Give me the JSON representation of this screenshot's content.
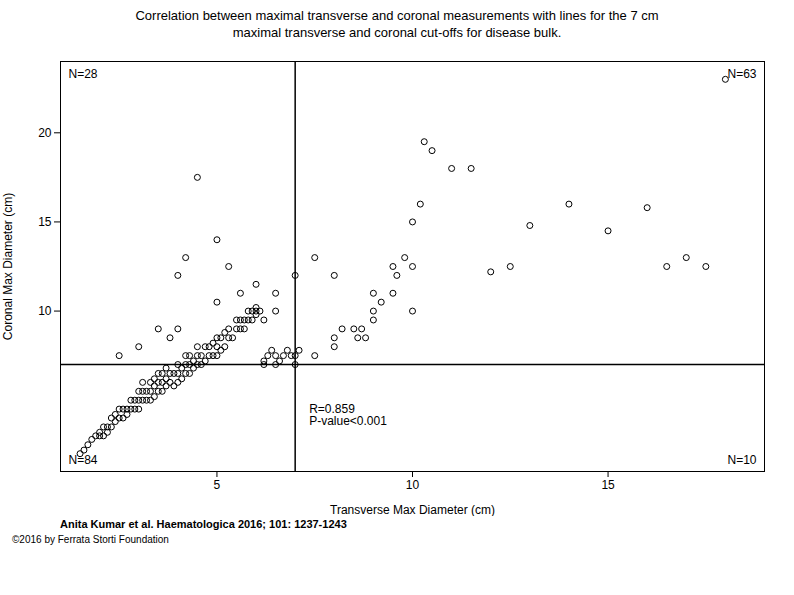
{
  "chart_data": {
    "type": "scatter",
    "title": "Correlation between maximal transverse and coronal measurements with lines for the 7 cm\nmaximal transverse and coronal cut-offs for disease bulk.",
    "x_label": "Transverse Max Diameter (cm)",
    "y_label": "Coronal Max Diameter (cm)",
    "xlim": [
      1,
      19
    ],
    "ylim": [
      1,
      24
    ],
    "xticks": [
      5,
      10,
      15
    ],
    "yticks": [
      10,
      15,
      20
    ],
    "grid": false,
    "marker": "circle",
    "color": "#000000",
    "vline": 7,
    "hline": 7,
    "quadrant_labels": {
      "top_left": "N=28",
      "top_right": "N=63",
      "bottom_left": "N=84",
      "bottom_right": "N=10"
    },
    "stats_box": "R=0.859\nP-value<0.001",
    "citation": "Anita Kumar et al. Haematologica 2016; 101: 1237-1243",
    "copyright": "©2016 by Ferrata Storti Foundation",
    "x": [
      1.5,
      1.6,
      1.7,
      1.8,
      1.9,
      2.0,
      2.0,
      2.1,
      2.1,
      2.2,
      2.2,
      2.3,
      2.3,
      2.4,
      2.4,
      2.5,
      2.5,
      2.6,
      2.6,
      2.7,
      2.7,
      2.8,
      2.8,
      2.9,
      2.9,
      3.0,
      3.0,
      3.0,
      3.1,
      3.1,
      3.1,
      3.2,
      3.2,
      3.3,
      3.3,
      3.3,
      3.4,
      3.4,
      3.4,
      3.5,
      3.5,
      3.5,
      3.6,
      3.6,
      3.6,
      3.7,
      3.7,
      3.7,
      3.8,
      3.8,
      3.9,
      3.9,
      4.0,
      4.0,
      4.0,
      4.1,
      4.1,
      4.2,
      4.2,
      4.2,
      4.3,
      4.3,
      4.3,
      4.4,
      4.4,
      4.5,
      4.5,
      4.5,
      4.6,
      4.6,
      4.7,
      4.7,
      4.8,
      4.8,
      4.9,
      4.9,
      5.0,
      5.0,
      5.0,
      5.1,
      5.1,
      5.2,
      5.2,
      5.3,
      5.3,
      5.4,
      5.5,
      5.5,
      5.6,
      5.6,
      5.7,
      5.7,
      5.8,
      5.8,
      5.9,
      5.9,
      6.0,
      6.0,
      6.1,
      6.2,
      6.2,
      6.3,
      6.4,
      6.5,
      6.5,
      6.6,
      6.7,
      6.8,
      6.9,
      7.0,
      7.0,
      7.1,
      7.5,
      8.0,
      8.0,
      8.2,
      8.5,
      8.6,
      8.7,
      8.8,
      9.0,
      9.0,
      9.2,
      9.5,
      9.5,
      9.6,
      9.8,
      10.0,
      10.0,
      10.2,
      10.3,
      10.5,
      11.0,
      11.5,
      12.0,
      12.5,
      13.0,
      14.0,
      15.0,
      16.0,
      16.5,
      17.0,
      17.5,
      18.0,
      4.0,
      4.2,
      4.5,
      5.0,
      5.3,
      5.6,
      6.0,
      6.2,
      6.5,
      7.0,
      7.5,
      8.0,
      9.0,
      10.0,
      2.5,
      3.0,
      3.5,
      3.8,
      4.0,
      5.0,
      6.0,
      6.5
    ],
    "values": [
      2.0,
      2.2,
      2.5,
      2.8,
      3.0,
      3.0,
      3.2,
      3.0,
      3.5,
      3.2,
      3.5,
      3.5,
      4.0,
      3.8,
      4.2,
      4.0,
      4.5,
      4.0,
      4.5,
      4.2,
      4.5,
      4.5,
      5.0,
      4.5,
      5.0,
      4.5,
      5.0,
      5.5,
      5.0,
      5.5,
      6.0,
      5.0,
      5.5,
      5.0,
      5.5,
      6.0,
      5.2,
      5.8,
      6.2,
      5.5,
      6.0,
      6.5,
      5.5,
      6.0,
      6.5,
      5.8,
      6.2,
      6.8,
      6.0,
      6.5,
      5.8,
      6.5,
      6.0,
      6.5,
      7.0,
      6.2,
      6.8,
      6.5,
      7.0,
      7.5,
      6.5,
      7.0,
      7.5,
      6.8,
      7.2,
      7.0,
      7.5,
      8.0,
      7.0,
      7.5,
      7.2,
      8.0,
      7.5,
      8.0,
      7.5,
      8.2,
      7.5,
      8.0,
      8.5,
      7.8,
      8.5,
      8.0,
      8.8,
      8.5,
      9.0,
      8.5,
      9.0,
      9.5,
      9.0,
      9.5,
      9.0,
      9.5,
      9.5,
      10.0,
      9.5,
      10.0,
      9.8,
      10.2,
      10.0,
      7.0,
      7.2,
      7.5,
      7.8,
      7.0,
      7.5,
      7.2,
      7.5,
      7.8,
      7.5,
      7.0,
      7.5,
      7.8,
      7.5,
      8.5,
      8.0,
      9.0,
      9.0,
      8.5,
      9.0,
      8.5,
      9.5,
      10.0,
      10.5,
      11.0,
      12.5,
      12.0,
      13.0,
      12.5,
      15.0,
      16.0,
      19.5,
      19.0,
      18.0,
      18.0,
      12.2,
      12.5,
      14.8,
      16.0,
      14.5,
      15.8,
      12.5,
      13.0,
      12.5,
      23.0,
      12.0,
      13.0,
      17.5,
      14.0,
      12.5,
      11.0,
      10.0,
      9.5,
      11.0,
      12.0,
      13.0,
      12.0,
      11.0,
      10.0,
      7.5,
      8.0,
      9.0,
      8.5,
      9.0,
      10.5,
      11.5,
      10.0
    ]
  }
}
